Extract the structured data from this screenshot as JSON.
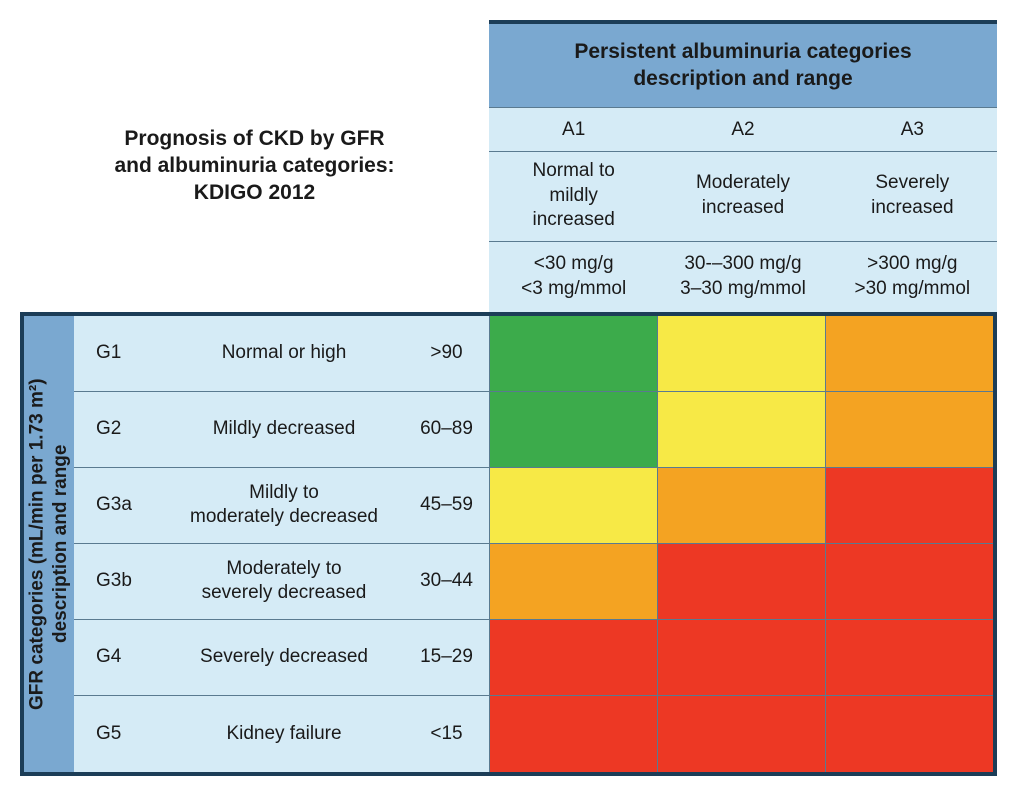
{
  "title": "Prognosis of CKD by GFR\nand albuminuria categories:\nKDIGO 2012",
  "colHeader": {
    "title": "Persistent albuminuria categories\ndescription and range",
    "codes": [
      "A1",
      "A2",
      "A3"
    ],
    "descriptions": [
      "Normal to\nmildly\nincreased",
      "Moderately\nincreased",
      "Severely\nincreased"
    ],
    "ranges": [
      [
        "<30 mg/g",
        "<3 mg/mmol"
      ],
      [
        "30-–300 mg/g",
        "3–30 mg/mmol"
      ],
      [
        ">300 mg/g",
        ">30 mg/mmol"
      ]
    ]
  },
  "rowHeader": {
    "title": "GFR categories (mL/min per 1.73 m²)\ndescription and range"
  },
  "rows": [
    {
      "code": "G1",
      "desc": "Normal or high",
      "range": ">90",
      "risk": [
        "green",
        "yellow",
        "orange"
      ]
    },
    {
      "code": "G2",
      "desc": "Mildly decreased",
      "range": "60–89",
      "risk": [
        "green",
        "yellow",
        "orange"
      ]
    },
    {
      "code": "G3a",
      "desc": "Mildly to\nmoderately decreased",
      "range": "45–59",
      "risk": [
        "yellow",
        "orange",
        "red"
      ]
    },
    {
      "code": "G3b",
      "desc": "Moderately to\nseverely decreased",
      "range": "30–44",
      "risk": [
        "orange",
        "red",
        "red"
      ]
    },
    {
      "code": "G4",
      "desc": "Severely decreased",
      "range": "15–29",
      "risk": [
        "red",
        "red",
        "red"
      ]
    },
    {
      "code": "G5",
      "desc": "Kidney failure",
      "range": "<15",
      "risk": [
        "red",
        "red",
        "red"
      ]
    }
  ],
  "colors": {
    "borderDark": "#1c3d57",
    "borderLight": "#5a7a90",
    "headerDark": "#7aa8d0",
    "headerLight": "#d5ebf6",
    "rowLabelBg": "#d5ebf6",
    "risk": {
      "green": "#3cab4b",
      "yellow": "#f7e946",
      "orange": "#f4a322",
      "red": "#ed3824"
    }
  },
  "typography": {
    "titleWeight": 700,
    "titleSize": 21,
    "cellSize": 19
  }
}
